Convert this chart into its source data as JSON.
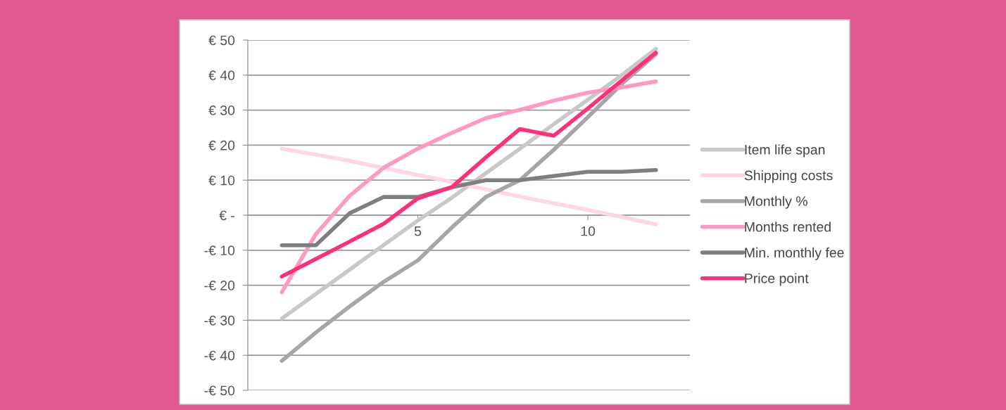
{
  "chart_data": {
    "type": "line",
    "x": [
      1,
      2,
      3,
      4,
      5,
      6,
      7,
      8,
      9,
      10,
      11,
      12
    ],
    "xlim": [
      0,
      13
    ],
    "xticks": [
      5,
      10
    ],
    "ylim": [
      -50,
      50
    ],
    "yticks": [
      {
        "value": -50,
        "label": "-€ 50"
      },
      {
        "value": -40,
        "label": "-€ 40"
      },
      {
        "value": -30,
        "label": "-€ 30"
      },
      {
        "value": -20,
        "label": "-€ 20"
      },
      {
        "value": -10,
        "label": "-€ 10"
      },
      {
        "value": 0,
        "label": "€ -"
      },
      {
        "value": 10,
        "label": "€ 10"
      },
      {
        "value": 20,
        "label": "€ 20"
      },
      {
        "value": 30,
        "label": "€ 30"
      },
      {
        "value": 40,
        "label": "€ 40"
      },
      {
        "value": 50,
        "label": "€ 50"
      }
    ],
    "grid": "y",
    "legend": "right",
    "marker": "none",
    "line_style": "solid",
    "series": [
      {
        "name": "Item life span",
        "color": "#c8c8c8",
        "values": [
          -29.5,
          -22.5,
          -15.5,
          -8.5,
          -1.5,
          5,
          12,
          19,
          26,
          33,
          40,
          47.5
        ]
      },
      {
        "name": "Shipping costs",
        "color": "#ffd6e6",
        "values": [
          19,
          17.3,
          15.5,
          13.5,
          11.5,
          9.5,
          7.4,
          5.3,
          3.4,
          1.5,
          -0.5,
          -2.6
        ]
      },
      {
        "name": "Monthly %",
        "color": "#a6a6a6",
        "values": [
          -41.6,
          -33.5,
          -26,
          -19,
          -12.9,
          -3.5,
          5.2,
          10,
          18.7,
          28,
          37.5,
          46
        ]
      },
      {
        "name": "Months rented",
        "color": "#ff99c4",
        "values": [
          -22,
          -5.4,
          5.6,
          13.6,
          19,
          23.5,
          27.7,
          30.1,
          32.7,
          35,
          36.5,
          38.2
        ]
      },
      {
        "name": "Min. monthly fee",
        "color": "#7f7f7f",
        "values": [
          -8.6,
          -8.6,
          0.6,
          5.2,
          5.2,
          8,
          10,
          10,
          11.2,
          12.4,
          12.4,
          12.9
        ]
      },
      {
        "name": "Price point",
        "color": "#ff2f7e",
        "values": [
          -17.5,
          -12.5,
          -7.5,
          -2.4,
          4.8,
          8,
          16.5,
          24.6,
          22.7,
          30.5,
          38.5,
          46.4
        ]
      }
    ]
  }
}
